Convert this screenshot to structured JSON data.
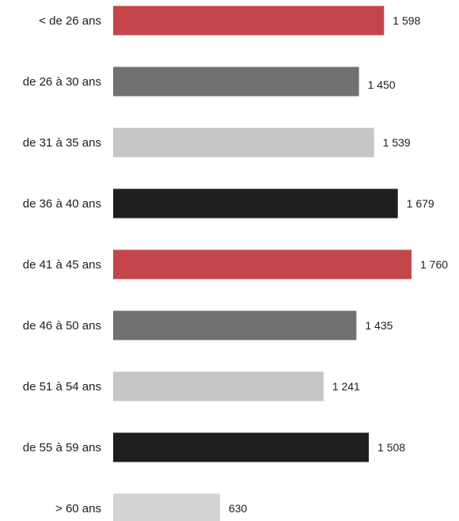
{
  "chart_data": {
    "type": "bar",
    "orientation": "horizontal",
    "title": "",
    "xlabel": "",
    "ylabel": "",
    "grid": false,
    "legend": "none",
    "xlim": [
      0,
      1760
    ],
    "categories": [
      "< de 26 ans",
      "de 26 à 30 ans",
      "de 31 à 35 ans",
      "de 36 à 40 ans",
      "de 41 à 45 ans",
      "de 46 à 50 ans",
      "de 51 à 54 ans",
      "de 55 à 59 ans",
      "> 60 ans"
    ],
    "values": [
      1598,
      1450,
      1539,
      1679,
      1760,
      1435,
      1241,
      1508,
      630
    ],
    "value_labels": [
      "1 598",
      "1 450",
      "1 539",
      "1 679",
      "1 760",
      "1 435",
      "1 241",
      "1 508",
      "630"
    ],
    "bar_colors": [
      "#c4464b",
      "#727070",
      "#c6c6c6",
      "#1e1e1e",
      "#c4464b",
      "#727070",
      "#c6c6c6",
      "#1e1e1e",
      "#d2d2d2"
    ]
  }
}
